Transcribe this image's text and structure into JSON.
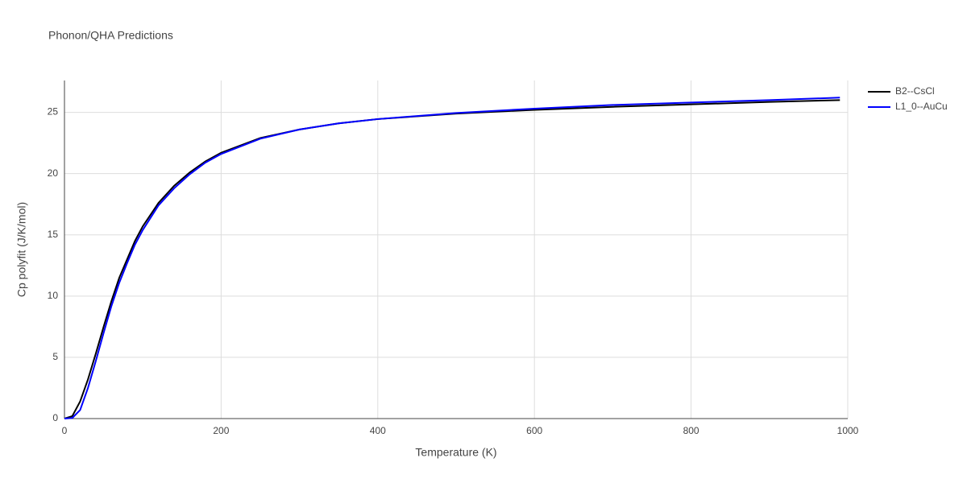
{
  "chart_data": {
    "type": "line",
    "title": "Phonon/QHA Predictions",
    "x_label": "Temperature (K)",
    "y_label": "Cp polyfit (J/K/mol)",
    "x": [
      0,
      10,
      20,
      30,
      40,
      50,
      60,
      70,
      80,
      90,
      100,
      120,
      140,
      160,
      180,
      200,
      250,
      300,
      350,
      400,
      500,
      600,
      700,
      800,
      900,
      990
    ],
    "series": [
      {
        "name": "B2--CsCl",
        "color": "#000000",
        "values": [
          0,
          0.2,
          1.4,
          3.2,
          5.3,
          7.5,
          9.6,
          11.5,
          13.0,
          14.5,
          15.7,
          17.6,
          19.0,
          20.1,
          21.0,
          21.7,
          22.9,
          23.6,
          24.1,
          24.45,
          24.9,
          25.2,
          25.45,
          25.65,
          25.85,
          26.0
        ]
      },
      {
        "name": "L1_0--AuCu",
        "color": "#0000ff",
        "values": [
          0,
          0.05,
          0.7,
          2.5,
          4.7,
          7.0,
          9.2,
          11.1,
          12.7,
          14.2,
          15.4,
          17.4,
          18.8,
          19.95,
          20.9,
          21.6,
          22.85,
          23.6,
          24.1,
          24.45,
          24.95,
          25.3,
          25.6,
          25.8,
          26.0,
          26.2
        ]
      }
    ],
    "xlim": [
      0,
      1000
    ],
    "xticks": [
      0,
      200,
      400,
      600,
      800,
      1000
    ],
    "ylim": [
      0,
      27.6
    ],
    "yticks": [
      0,
      5,
      10,
      15,
      20,
      25
    ],
    "grid": true,
    "legend": "right"
  }
}
